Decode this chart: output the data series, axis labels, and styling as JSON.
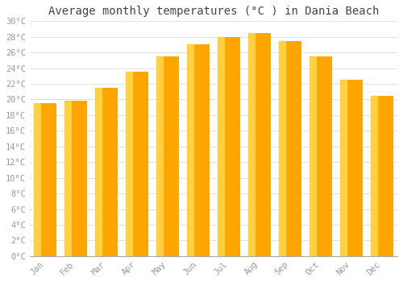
{
  "title": "Average monthly temperatures (°C ) in Dania Beach",
  "months": [
    "Jan",
    "Feb",
    "Mar",
    "Apr",
    "May",
    "Jun",
    "Jul",
    "Aug",
    "Sep",
    "Oct",
    "Nov",
    "Dec"
  ],
  "values": [
    19.5,
    19.8,
    21.5,
    23.5,
    25.5,
    27.0,
    28.0,
    28.5,
    27.5,
    25.5,
    22.5,
    20.5
  ],
  "bar_color_main": "#FFA500",
  "bar_color_light": "#FFD040",
  "bar_color_dark": "#F09000",
  "ylim": [
    0,
    30
  ],
  "ytick_step": 2,
  "background_color": "#FFFFFF",
  "grid_color": "#DDDDDD",
  "title_fontsize": 10,
  "tick_fontsize": 7.5,
  "tick_label_color": "#999999",
  "title_color": "#444444",
  "bar_width": 0.75
}
